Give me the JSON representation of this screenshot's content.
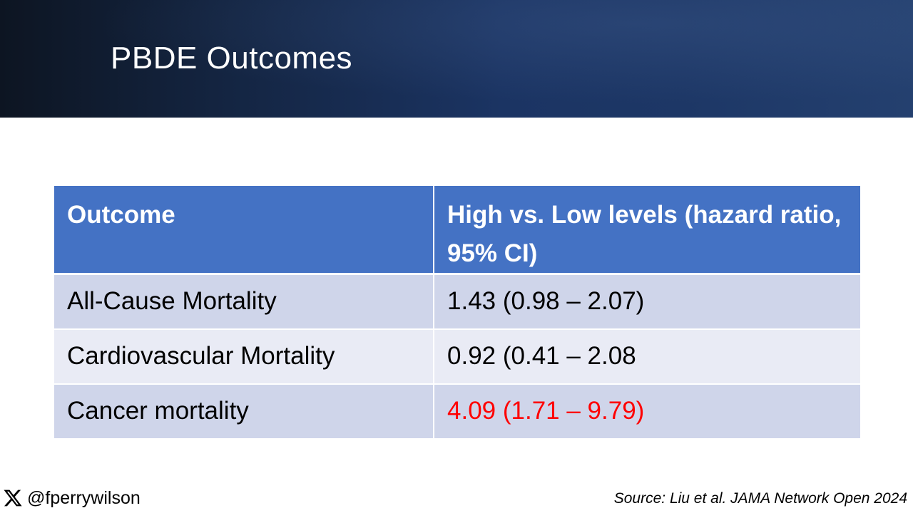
{
  "slide": {
    "title": "PBDE Outcomes"
  },
  "table": {
    "headers": [
      "Outcome",
      "High vs. Low levels (hazard ratio, 95% CI)"
    ],
    "rows": [
      {
        "outcome": "All-Cause Mortality",
        "value": "1.43 (0.98 – 2.07)"
      },
      {
        "outcome": "Cardiovascular Mortality",
        "value": "0.92 (0.41 – 2.08"
      },
      {
        "outcome": "Cancer mortality",
        "value": "4.09 (1.71 – 9.79)"
      }
    ]
  },
  "footer": {
    "social_icon": "x-logo-icon",
    "handle": "@fperrywilson",
    "source": "Source:  Liu et al. JAMA Network Open 2024"
  },
  "colors": {
    "header_band": "#1b3463",
    "table_header": "#4472c4",
    "row_odd": "#cfd5ea",
    "row_even": "#e9ebf5",
    "highlight": "#ff0000"
  }
}
